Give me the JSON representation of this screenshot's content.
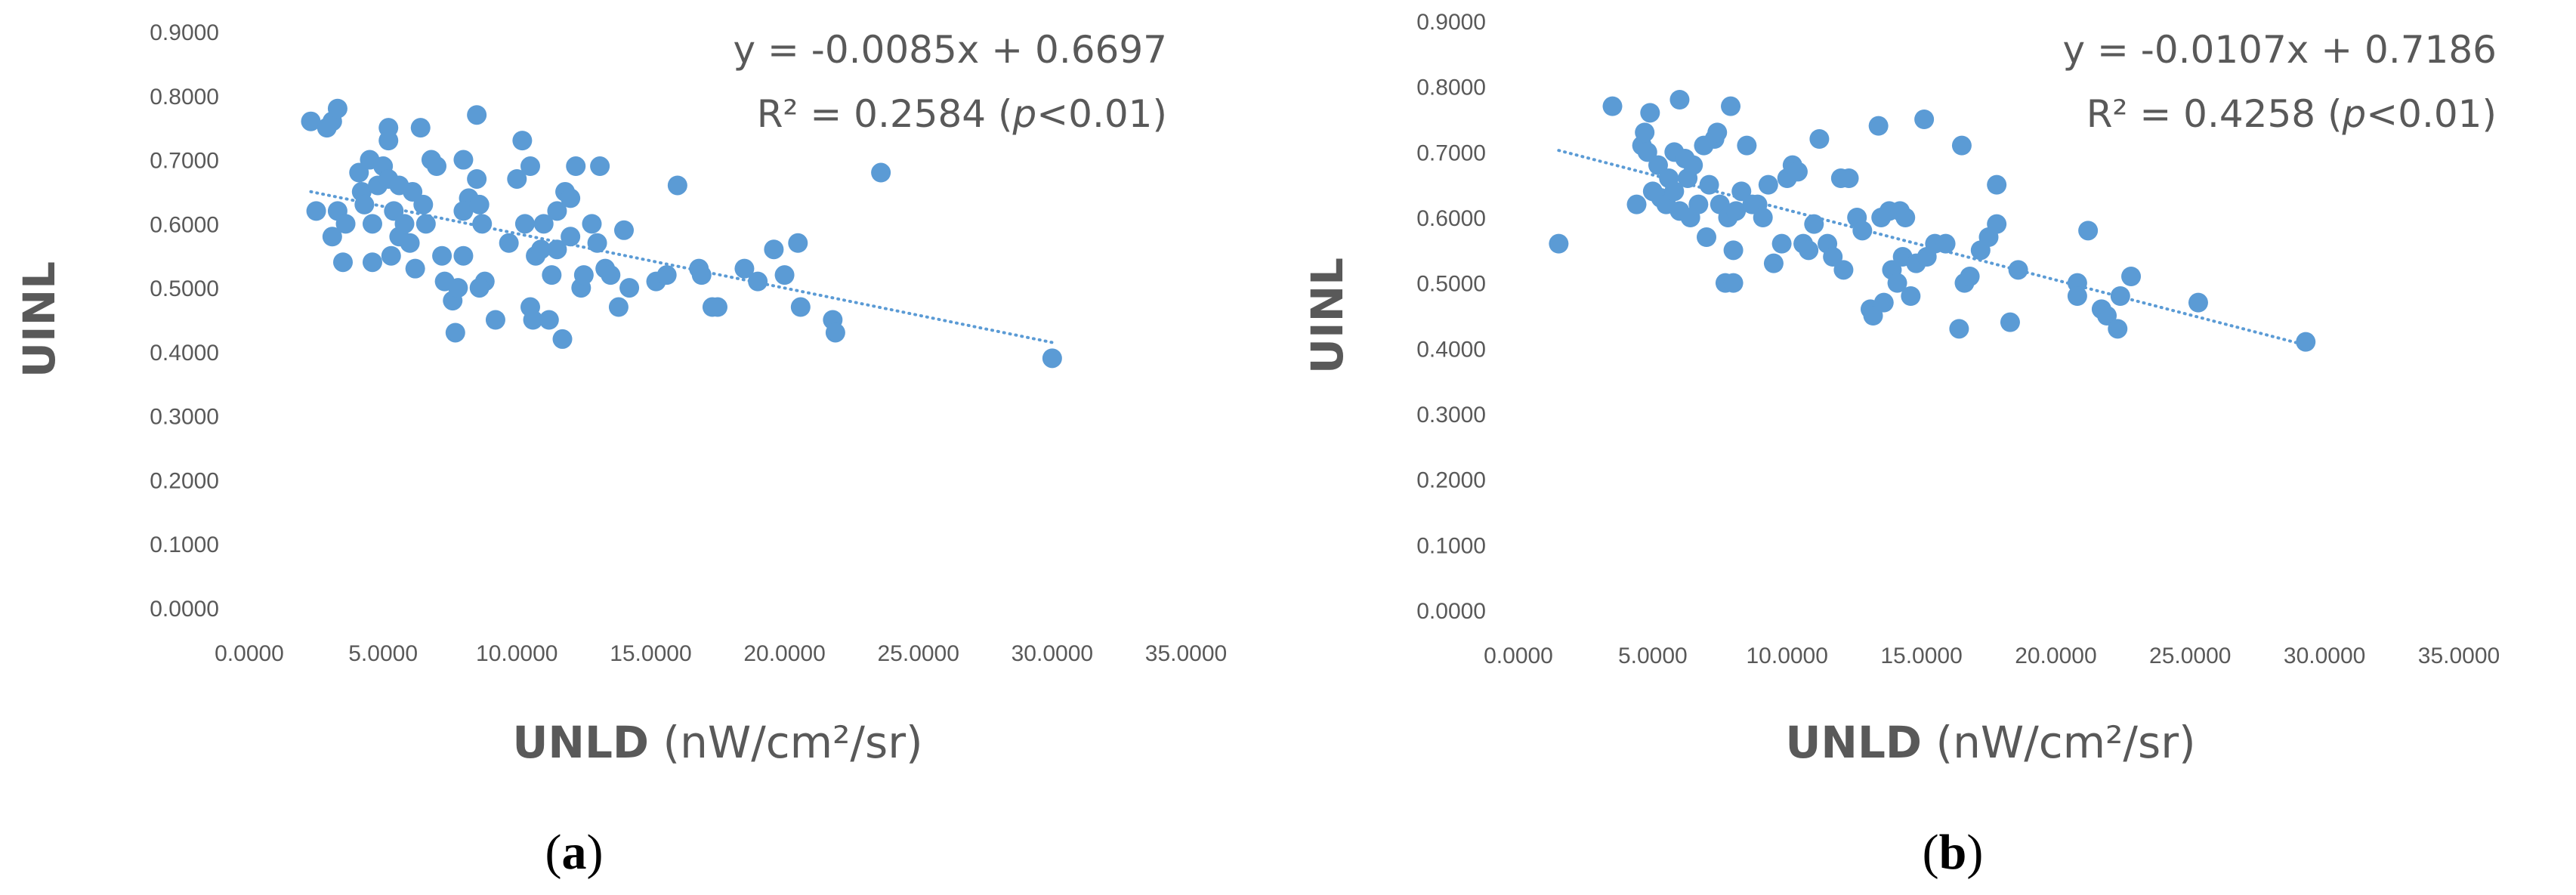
{
  "panels": [
    {
      "label": "a",
      "equation": "y = -0.0085x + 0.6697",
      "r2_text": "R² = 0.2584",
      "p_text": "p<0.01",
      "xlabel_bold": "UNLD",
      "xlabel_unit": "(nW/cm²/sr)",
      "ylabel": "UINL"
    },
    {
      "label": "b",
      "equation": "y = -0.0107x + 0.7186",
      "r2_text": "R² = 0.4258",
      "p_text": "p<0.01",
      "xlabel_bold": "UNLD",
      "xlabel_unit": "(nW/cm²/sr)",
      "ylabel": "UINL"
    }
  ],
  "chart_data": [
    {
      "type": "scatter",
      "xlim": [
        0,
        35
      ],
      "ylim": [
        0,
        0.9
      ],
      "x_ticks": [
        "0.0000",
        "5.0000",
        "10.0000",
        "15.0000",
        "20.0000",
        "25.0000",
        "30.0000",
        "35.0000"
      ],
      "y_ticks": [
        "0.0000",
        "0.1000",
        "0.2000",
        "0.3000",
        "0.4000",
        "0.5000",
        "0.6000",
        "0.7000",
        "0.8000",
        "0.9000"
      ],
      "grid": false,
      "point_color": "#5B9BD5",
      "trendline": {
        "slope": -0.0085,
        "intercept": 0.6697,
        "x_range": [
          2.3,
          30.0
        ],
        "style": "dotted"
      },
      "points": [
        [
          2.3,
          0.76
        ],
        [
          2.5,
          0.62
        ],
        [
          2.9,
          0.75
        ],
        [
          3.1,
          0.76
        ],
        [
          3.3,
          0.78
        ],
        [
          3.1,
          0.58
        ],
        [
          3.3,
          0.62
        ],
        [
          3.6,
          0.6
        ],
        [
          3.5,
          0.54
        ],
        [
          4.1,
          0.68
        ],
        [
          4.2,
          0.65
        ],
        [
          4.5,
          0.7
        ],
        [
          4.3,
          0.63
        ],
        [
          4.6,
          0.6
        ],
        [
          4.8,
          0.66
        ],
        [
          4.6,
          0.54
        ],
        [
          5.0,
          0.69
        ],
        [
          5.2,
          0.67
        ],
        [
          5.2,
          0.75
        ],
        [
          5.2,
          0.73
        ],
        [
          5.4,
          0.62
        ],
        [
          5.6,
          0.66
        ],
        [
          5.3,
          0.55
        ],
        [
          5.6,
          0.58
        ],
        [
          5.8,
          0.6
        ],
        [
          6.0,
          0.57
        ],
        [
          6.2,
          0.53
        ],
        [
          6.4,
          0.75
        ],
        [
          6.1,
          0.65
        ],
        [
          6.5,
          0.63
        ],
        [
          6.6,
          0.6
        ],
        [
          6.8,
          0.7
        ],
        [
          7.0,
          0.69
        ],
        [
          7.2,
          0.55
        ],
        [
          7.3,
          0.51
        ],
        [
          7.6,
          0.48
        ],
        [
          7.7,
          0.43
        ],
        [
          7.8,
          0.5
        ],
        [
          8.0,
          0.55
        ],
        [
          8.0,
          0.7
        ],
        [
          8.2,
          0.64
        ],
        [
          8.0,
          0.62
        ],
        [
          8.5,
          0.67
        ],
        [
          8.5,
          0.77
        ],
        [
          8.6,
          0.63
        ],
        [
          8.7,
          0.6
        ],
        [
          8.8,
          0.51
        ],
        [
          8.6,
          0.5
        ],
        [
          9.2,
          0.45
        ],
        [
          9.7,
          0.57
        ],
        [
          10.0,
          0.67
        ],
        [
          10.2,
          0.73
        ],
        [
          10.3,
          0.6
        ],
        [
          10.5,
          0.69
        ],
        [
          10.5,
          0.47
        ],
        [
          10.6,
          0.45
        ],
        [
          10.7,
          0.55
        ],
        [
          10.9,
          0.56
        ],
        [
          11.0,
          0.6
        ],
        [
          11.2,
          0.45
        ],
        [
          11.3,
          0.52
        ],
        [
          11.5,
          0.62
        ],
        [
          11.5,
          0.56
        ],
        [
          11.7,
          0.42
        ],
        [
          11.8,
          0.65
        ],
        [
          12.0,
          0.64
        ],
        [
          12.0,
          0.58
        ],
        [
          12.2,
          0.69
        ],
        [
          12.4,
          0.5
        ],
        [
          12.5,
          0.52
        ],
        [
          12.8,
          0.6
        ],
        [
          13.0,
          0.57
        ],
        [
          13.1,
          0.69
        ],
        [
          13.3,
          0.53
        ],
        [
          13.5,
          0.52
        ],
        [
          13.8,
          0.47
        ],
        [
          14.0,
          0.59
        ],
        [
          14.2,
          0.5
        ],
        [
          15.2,
          0.51
        ],
        [
          15.6,
          0.52
        ],
        [
          16.0,
          0.66
        ],
        [
          16.8,
          0.53
        ],
        [
          16.9,
          0.52
        ],
        [
          17.3,
          0.47
        ],
        [
          17.5,
          0.47
        ],
        [
          18.5,
          0.53
        ],
        [
          19.0,
          0.51
        ],
        [
          19.6,
          0.56
        ],
        [
          20.0,
          0.52
        ],
        [
          20.5,
          0.57
        ],
        [
          20.6,
          0.47
        ],
        [
          21.8,
          0.45
        ],
        [
          21.9,
          0.43
        ],
        [
          23.6,
          0.68
        ],
        [
          30.0,
          0.39
        ]
      ]
    },
    {
      "type": "scatter",
      "xlim": [
        0,
        35
      ],
      "ylim": [
        0,
        0.9
      ],
      "x_ticks": [
        "0.0000",
        "5.0000",
        "10.0000",
        "15.0000",
        "20.0000",
        "25.0000",
        "30.0000",
        "35.0000"
      ],
      "y_ticks": [
        "0.0000",
        "0.1000",
        "0.2000",
        "0.3000",
        "0.4000",
        "0.5000",
        "0.6000",
        "0.7000",
        "0.8000",
        "0.9000"
      ],
      "grid": false,
      "point_color": "#5B9BD5",
      "trendline": {
        "slope": -0.0107,
        "intercept": 0.7186,
        "x_range": [
          1.5,
          29.3
        ],
        "style": "dotted"
      },
      "points": [
        [
          1.5,
          0.56
        ],
        [
          3.5,
          0.77
        ],
        [
          4.4,
          0.62
        ],
        [
          4.6,
          0.71
        ],
        [
          4.7,
          0.73
        ],
        [
          4.8,
          0.7
        ],
        [
          4.9,
          0.76
        ],
        [
          5.0,
          0.64
        ],
        [
          5.2,
          0.68
        ],
        [
          5.3,
          0.63
        ],
        [
          5.5,
          0.62
        ],
        [
          5.6,
          0.66
        ],
        [
          5.8,
          0.7
        ],
        [
          5.8,
          0.64
        ],
        [
          6.0,
          0.61
        ],
        [
          6.0,
          0.78
        ],
        [
          6.2,
          0.69
        ],
        [
          6.3,
          0.66
        ],
        [
          6.4,
          0.6
        ],
        [
          6.5,
          0.68
        ],
        [
          6.7,
          0.62
        ],
        [
          6.9,
          0.71
        ],
        [
          7.0,
          0.57
        ],
        [
          7.1,
          0.65
        ],
        [
          7.3,
          0.72
        ],
        [
          7.4,
          0.73
        ],
        [
          7.5,
          0.62
        ],
        [
          7.7,
          0.5
        ],
        [
          7.9,
          0.77
        ],
        [
          7.8,
          0.6
        ],
        [
          8.0,
          0.55
        ],
        [
          8.0,
          0.5
        ],
        [
          8.1,
          0.61
        ],
        [
          8.3,
          0.64
        ],
        [
          8.5,
          0.71
        ],
        [
          8.7,
          0.62
        ],
        [
          8.9,
          0.62
        ],
        [
          9.1,
          0.6
        ],
        [
          9.3,
          0.65
        ],
        [
          9.5,
          0.53
        ],
        [
          9.8,
          0.56
        ],
        [
          10.0,
          0.66
        ],
        [
          10.2,
          0.68
        ],
        [
          10.4,
          0.67
        ],
        [
          10.6,
          0.56
        ],
        [
          10.8,
          0.55
        ],
        [
          11.0,
          0.59
        ],
        [
          11.2,
          0.72
        ],
        [
          11.5,
          0.56
        ],
        [
          11.7,
          0.54
        ],
        [
          12.0,
          0.66
        ],
        [
          12.1,
          0.52
        ],
        [
          12.3,
          0.66
        ],
        [
          12.6,
          0.6
        ],
        [
          12.8,
          0.58
        ],
        [
          13.1,
          0.46
        ],
        [
          13.2,
          0.45
        ],
        [
          13.4,
          0.74
        ],
        [
          13.5,
          0.6
        ],
        [
          13.6,
          0.47
        ],
        [
          13.8,
          0.61
        ],
        [
          13.9,
          0.52
        ],
        [
          14.1,
          0.5
        ],
        [
          14.2,
          0.61
        ],
        [
          14.3,
          0.54
        ],
        [
          14.4,
          0.6
        ],
        [
          14.6,
          0.48
        ],
        [
          14.8,
          0.53
        ],
        [
          15.1,
          0.75
        ],
        [
          15.2,
          0.54
        ],
        [
          15.5,
          0.56
        ],
        [
          15.9,
          0.56
        ],
        [
          16.4,
          0.43
        ],
        [
          16.5,
          0.71
        ],
        [
          16.6,
          0.5
        ],
        [
          16.8,
          0.51
        ],
        [
          17.2,
          0.55
        ],
        [
          17.5,
          0.57
        ],
        [
          17.8,
          0.65
        ],
        [
          17.8,
          0.59
        ],
        [
          18.3,
          0.44
        ],
        [
          18.6,
          0.52
        ],
        [
          20.8,
          0.5
        ],
        [
          20.8,
          0.48
        ],
        [
          21.2,
          0.58
        ],
        [
          21.7,
          0.46
        ],
        [
          21.9,
          0.45
        ],
        [
          22.3,
          0.43
        ],
        [
          22.4,
          0.48
        ],
        [
          22.8,
          0.51
        ],
        [
          25.3,
          0.47
        ],
        [
          29.3,
          0.41
        ]
      ]
    }
  ]
}
